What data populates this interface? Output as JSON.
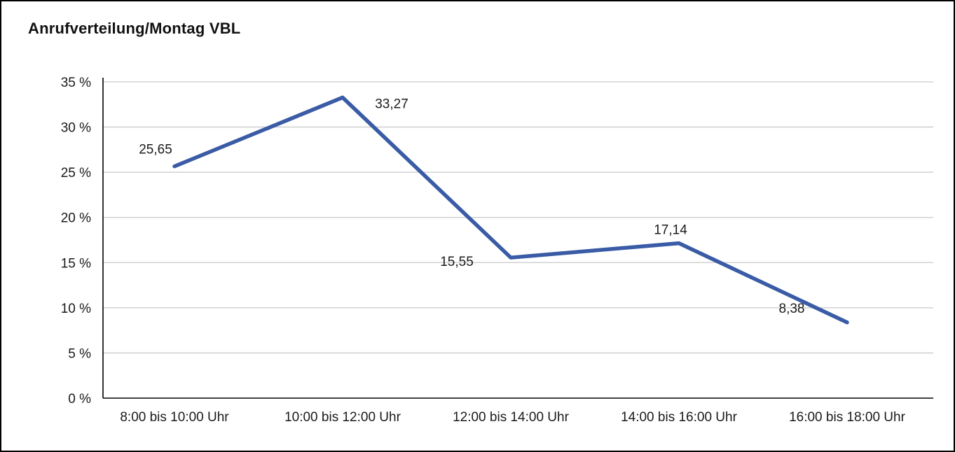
{
  "page": {
    "background": "#ffffff",
    "border_color": "#000000"
  },
  "chart_data": {
    "type": "line",
    "title": "Anrufverteilung/Montag VBL",
    "categories": [
      "8:00 bis 10:00 Uhr",
      "10:00 bis 12:00 Uhr",
      "12:00 bis 14:00 Uhr",
      "14:00 bis 16:00 Uhr",
      "16:00 bis 18:00 Uhr"
    ],
    "values": [
      25.65,
      33.27,
      15.55,
      17.14,
      8.38
    ],
    "data_labels": [
      "25,65",
      "33,27",
      "15,55",
      "17,14",
      "8,38"
    ],
    "xlabel": "",
    "ylabel": "",
    "ylim": [
      0,
      35
    ],
    "ytick_step": 5,
    "ytick_labels": [
      "0 %",
      "5 %",
      "10 %",
      "15 %",
      "20 %",
      "25 %",
      "30 %",
      "35 %"
    ],
    "legend": "none",
    "grid": true,
    "line_color": "#3a5ba5",
    "gridline_color": "#c9c9c9",
    "axis_color": "#000000",
    "text_color": "#1a1a1a"
  }
}
